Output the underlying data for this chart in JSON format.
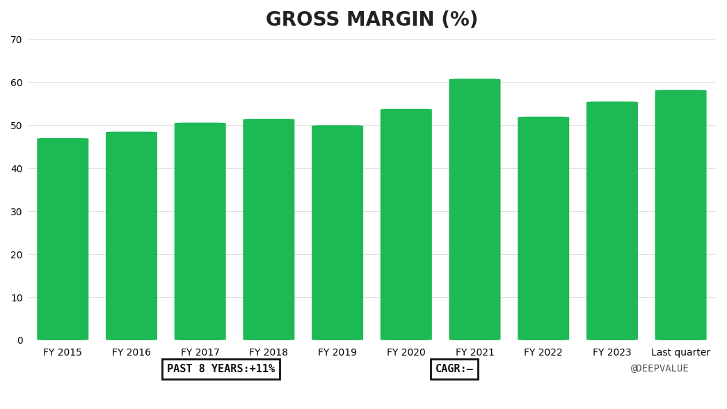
{
  "title": "GROSS MARGIN (%)",
  "categories": [
    "FY 2015",
    "FY 2016",
    "FY 2017",
    "FY 2018",
    "FY 2019",
    "FY 2020",
    "FY 2021",
    "FY 2022",
    "FY 2023",
    "Last quarter"
  ],
  "values": [
    47.0,
    48.5,
    50.6,
    51.5,
    50.0,
    53.8,
    60.8,
    52.0,
    55.5,
    58.2
  ],
  "bar_color": "#1DB954",
  "background_color": "#ffffff",
  "ylim": [
    0,
    70
  ],
  "yticks": [
    0,
    10,
    20,
    30,
    40,
    50,
    60,
    70
  ],
  "grid_color": "#e0e0e0",
  "title_fontsize": 20,
  "tick_fontsize": 10,
  "annotation_left": "PAST 8 YEARS:+11%",
  "annotation_right": "CAGR:–",
  "watermark": "@DEEPVALUE"
}
